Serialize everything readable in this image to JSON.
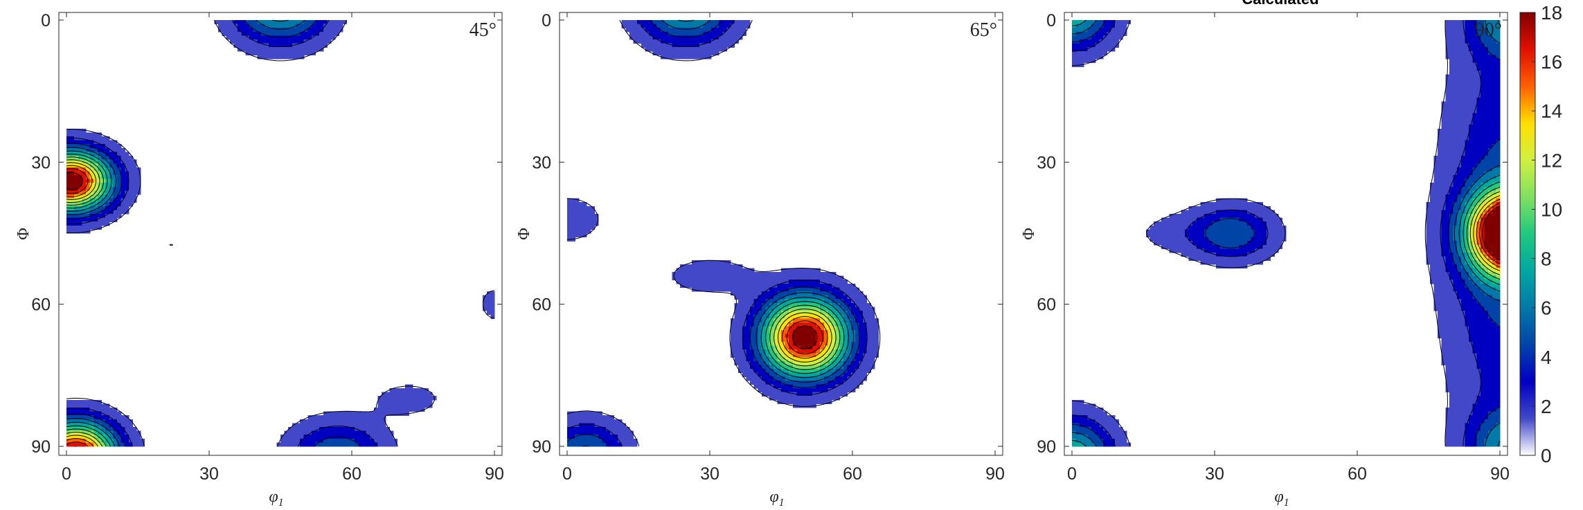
{
  "title": "Calculated",
  "colorbar": {
    "min": 0,
    "max": 18,
    "ticks": [
      "0",
      "2",
      "4",
      "6",
      "8",
      "10",
      "12",
      "14",
      "16",
      "18"
    ],
    "colormap": [
      "#ffffff",
      "#4348c8",
      "#0000c0",
      "#0044a8",
      "#0078a8",
      "#00a8a0",
      "#20c880",
      "#80e060",
      "#d0f040",
      "#ffe000",
      "#ff6000",
      "#e01000",
      "#800000"
    ]
  },
  "chart_data": [
    {
      "type": "contour",
      "annotation": "45°",
      "xlabel": "φ1",
      "ylabel": "Φ",
      "xlim": [
        0,
        90
      ],
      "ylim": [
        0,
        90
      ],
      "xticks": [
        "0",
        "30",
        "60",
        "90"
      ],
      "yticks": [
        "0",
        "30",
        "60",
        "90"
      ],
      "peaks": [
        {
          "x": 45,
          "y": -4,
          "sx": 7,
          "sy": 6,
          "amp": 9
        },
        {
          "x": 1,
          "y": 34,
          "sx": 6,
          "sy": 4.5,
          "amp": 19
        },
        {
          "x": 2,
          "y": 92,
          "sx": 6,
          "sy": 5,
          "amp": 19
        },
        {
          "x": 57,
          "y": 92,
          "sx": 7,
          "sy": 5,
          "amp": 5.5
        },
        {
          "x": 72,
          "y": 80,
          "sx": 6,
          "sy": 3,
          "amp": 1.5
        },
        {
          "x": 90,
          "y": 60,
          "sx": 2.5,
          "sy": 3,
          "amp": 1.6
        },
        {
          "x": 22,
          "y": 47.5,
          "sx": 1.2,
          "sy": 0.7,
          "amp": 1.1
        }
      ]
    },
    {
      "type": "contour",
      "annotation": "65°",
      "xlabel": "φ1",
      "ylabel": "Φ",
      "xlim": [
        0,
        90
      ],
      "ylim": [
        0,
        90
      ],
      "xticks": [
        "0",
        "30",
        "60",
        "90"
      ],
      "yticks": [
        "0",
        "30",
        "60",
        "90"
      ],
      "peaks": [
        {
          "x": 25,
          "y": -4,
          "sx": 7,
          "sy": 6,
          "amp": 9
        },
        {
          "x": 50,
          "y": 67,
          "sx": 6.5,
          "sy": 6,
          "amp": 19
        },
        {
          "x": 30,
          "y": 54,
          "sx": 7,
          "sy": 3,
          "amp": 1.8
        },
        {
          "x": 0,
          "y": 42,
          "sx": 6,
          "sy": 4,
          "amp": 1.8
        },
        {
          "x": 4,
          "y": 92,
          "sx": 6,
          "sy": 5,
          "amp": 6
        }
      ]
    },
    {
      "type": "contour",
      "annotation": "90°",
      "xlabel": "φ1",
      "ylabel": "Φ",
      "xlim": [
        0,
        90
      ],
      "ylim": [
        0,
        90
      ],
      "xticks": [
        "0",
        "30",
        "60",
        "90"
      ],
      "yticks": [
        "0",
        "30",
        "60",
        "90"
      ],
      "peaks": [
        {
          "x": 0,
          "y": -3,
          "sx": 6,
          "sy": 6,
          "amp": 9
        },
        {
          "x": 0,
          "y": 93,
          "sx": 6,
          "sy": 6,
          "amp": 9
        },
        {
          "x": 92,
          "y": 45,
          "sx": 6,
          "sy": 6,
          "amp": 21
        },
        {
          "x": 92,
          "y": 45,
          "sx": 9,
          "sy": 30,
          "amp": 5
        },
        {
          "x": 92,
          "y": 91,
          "sx": 6,
          "sy": 6,
          "amp": 6
        },
        {
          "x": 92,
          "y": -1,
          "sx": 6,
          "sy": 6,
          "amp": 6
        },
        {
          "x": 34,
          "y": 45,
          "sx": 6,
          "sy": 4,
          "amp": 5
        },
        {
          "x": 22,
          "y": 45,
          "sx": 8,
          "sy": 3.5,
          "amp": 1.3
        }
      ]
    }
  ]
}
